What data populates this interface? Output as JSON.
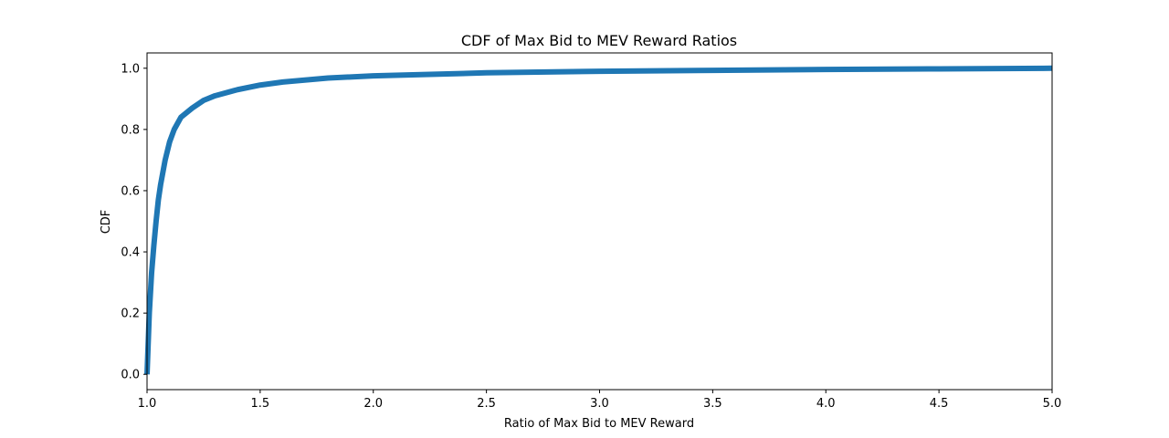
{
  "chart_data": {
    "type": "line",
    "title": "CDF of Max Bid to MEV Reward Ratios",
    "xlabel": "Ratio of Max Bid to MEV Reward",
    "ylabel": "CDF",
    "xlim": [
      1.0,
      5.0
    ],
    "ylim": [
      -0.05,
      1.05
    ],
    "xticks": [
      "1.0",
      "1.5",
      "2.0",
      "2.5",
      "3.0",
      "3.5",
      "4.0",
      "4.5",
      "5.0"
    ],
    "yticks": [
      "0.0",
      "0.2",
      "0.4",
      "0.6",
      "0.8",
      "1.0"
    ],
    "grid": false,
    "series": [
      {
        "color": "#1f77b4",
        "x": [
          1.0,
          1.01,
          1.02,
          1.03,
          1.04,
          1.05,
          1.06,
          1.08,
          1.1,
          1.12,
          1.15,
          1.2,
          1.25,
          1.3,
          1.4,
          1.5,
          1.6,
          1.8,
          2.0,
          2.25,
          2.5,
          3.0,
          3.5,
          4.0,
          4.5,
          5.0
        ],
        "y": [
          0.0,
          0.2,
          0.33,
          0.42,
          0.5,
          0.57,
          0.62,
          0.7,
          0.76,
          0.8,
          0.84,
          0.87,
          0.895,
          0.91,
          0.93,
          0.945,
          0.955,
          0.968,
          0.975,
          0.98,
          0.985,
          0.99,
          0.993,
          0.996,
          0.998,
          1.0
        ]
      }
    ]
  }
}
